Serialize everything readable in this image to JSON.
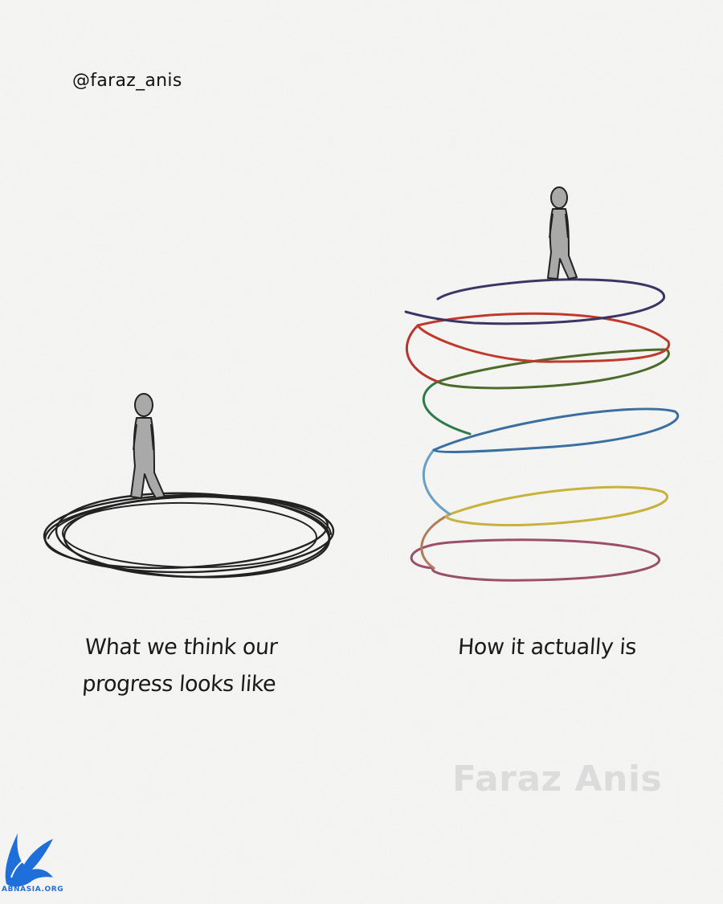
{
  "header": {
    "handle": "@faraz_anis"
  },
  "panels": {
    "left": {
      "caption_line1": "What we think our",
      "caption_line2": "progress looks like"
    },
    "right": {
      "caption": "How it actually is"
    }
  },
  "watermark": {
    "text": "Faraz Anis"
  },
  "site_logo": {
    "text": "ABNASIA.ORG",
    "color": "#1e6fd9"
  },
  "colors": {
    "background": "#f4f4f3",
    "ink": "#222222",
    "figure_fill": "#a9a9a9",
    "spiral": [
      "#3b3566",
      "#c0392b",
      "#b8342f",
      "#4e6b2e",
      "#2f8a4a",
      "#3a6f9f",
      "#c9b23a",
      "#9b4f6a"
    ]
  }
}
